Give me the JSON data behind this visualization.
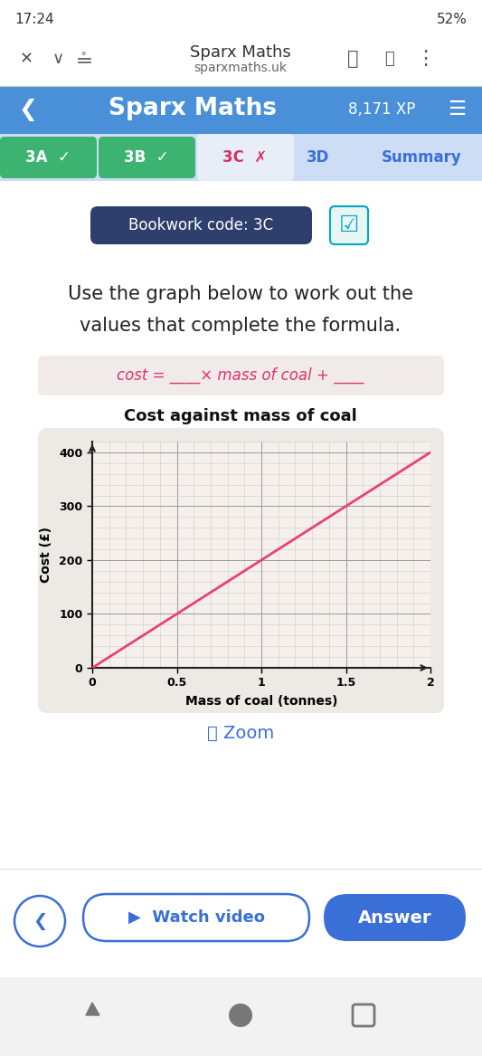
{
  "bg_color": "#ffffff",
  "status_bar_time": "17:24",
  "status_bar_battery": "52%",
  "browser_title": "Sparx Maths",
  "browser_url": "sparxmaths.uk",
  "header_bg": "#4a90d9",
  "header_title": "Sparx Maths",
  "header_xp": "8,171 XP",
  "tab_3a_bg": "#3cb371",
  "tab_3b_bg": "#3cb371",
  "tab_3c_bg": "#e8eef8",
  "tab_3d_bg": "#dde8f5",
  "tab_summary_bg": "#dde8f5",
  "bookwork_label": "Bookwork code: 3C",
  "bookwork_bg": "#2e3f6e",
  "instruction_line1": "Use the graph below to work out the",
  "instruction_line2": "values that complete the formula.",
  "formula_bg": "#f0ebe8",
  "graph_title": "Cost against mass of coal",
  "graph_bg": "#ede9e4",
  "xlabel": "Mass of coal (tonnes)",
  "ylabel": "Cost (£)",
  "x_ticks": [
    0,
    0.5,
    1,
    1.5,
    2
  ],
  "y_ticks": [
    0,
    100,
    200,
    300,
    400
  ],
  "xlim": [
    0,
    2
  ],
  "ylim": [
    0,
    420
  ],
  "line_x": [
    0.0,
    2.0
  ],
  "line_y": [
    0.0,
    400.0
  ],
  "line_color": "#e8407a",
  "line_width": 2.0,
  "zoom_color": "#3a6fd8",
  "answer_btn_bg": "#3a6fd8",
  "watch_border": "#3a6fd8",
  "nav_bar_bg": "#f2f2f2"
}
